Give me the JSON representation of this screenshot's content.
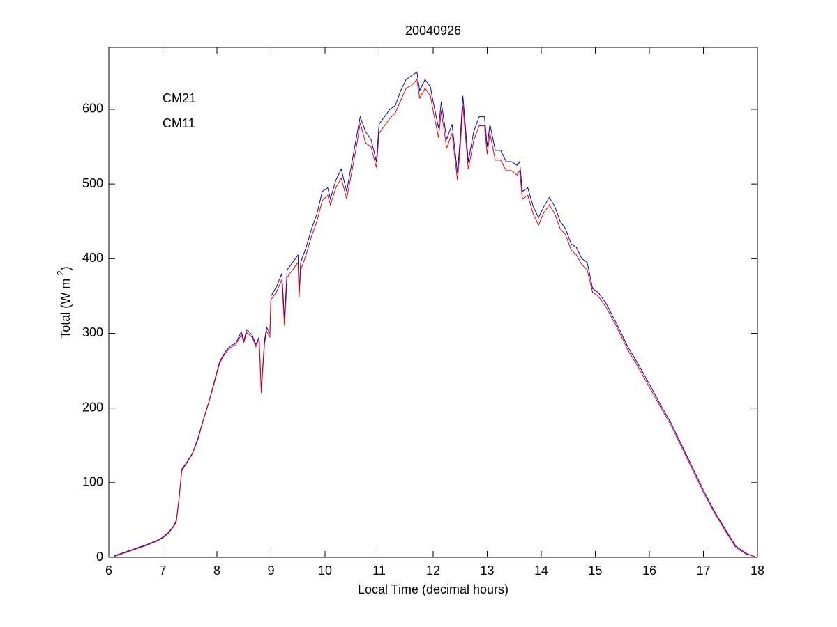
{
  "chart_data": {
    "type": "line",
    "title": "20040926",
    "xlabel": "Local Time (decimal hours)",
    "ylabel": [
      "Total (W m",
      "-2",
      ")"
    ],
    "legend": "upper left",
    "x": [
      6.1,
      6.3,
      6.5,
      6.7,
      6.9,
      7.0,
      7.1,
      7.2,
      7.25,
      7.3,
      7.35,
      7.45,
      7.55,
      7.65,
      7.75,
      7.85,
      7.95,
      8.05,
      8.15,
      8.25,
      8.35,
      8.45,
      8.5,
      8.55,
      8.65,
      8.72,
      8.78,
      8.82,
      8.88,
      8.92,
      8.98,
      9.0,
      9.1,
      9.2,
      9.25,
      9.3,
      9.4,
      9.5,
      9.52,
      9.55,
      9.65,
      9.75,
      9.85,
      9.95,
      10.05,
      10.1,
      10.2,
      10.3,
      10.4,
      10.5,
      10.6,
      10.65,
      10.75,
      10.85,
      10.95,
      11.0,
      11.1,
      11.2,
      11.3,
      11.4,
      11.5,
      11.6,
      11.7,
      11.75,
      11.85,
      11.95,
      12.0,
      12.1,
      12.15,
      12.25,
      12.35,
      12.45,
      12.5,
      12.55,
      12.65,
      12.75,
      12.85,
      12.95,
      13.0,
      13.05,
      13.15,
      13.25,
      13.35,
      13.45,
      13.55,
      13.6,
      13.65,
      13.75,
      13.85,
      13.95,
      14.05,
      14.15,
      14.25,
      14.35,
      14.45,
      14.55,
      14.65,
      14.75,
      14.85,
      14.95,
      15.05,
      15.2,
      15.4,
      15.6,
      15.8,
      16.0,
      16.2,
      16.4,
      16.6,
      16.8,
      17.0,
      17.2,
      17.4,
      17.6,
      17.8,
      17.95
    ],
    "series": [
      {
        "name": "CM21",
        "color": "#0000cc",
        "values": [
          2,
          7,
          12,
          17,
          23,
          27,
          33,
          42,
          50,
          80,
          118,
          128,
          140,
          160,
          185,
          208,
          235,
          262,
          275,
          283,
          287,
          302,
          290,
          305,
          298,
          285,
          295,
          225,
          290,
          308,
          300,
          350,
          362,
          380,
          320,
          385,
          395,
          405,
          355,
          395,
          415,
          440,
          460,
          490,
          495,
          480,
          505,
          520,
          490,
          530,
          570,
          590,
          570,
          560,
          530,
          580,
          590,
          600,
          605,
          625,
          640,
          645,
          650,
          625,
          640,
          630,
          610,
          575,
          610,
          560,
          580,
          515,
          560,
          618,
          530,
          570,
          590,
          590,
          550,
          580,
          545,
          545,
          530,
          530,
          525,
          530,
          490,
          495,
          470,
          455,
          470,
          482,
          470,
          450,
          440,
          420,
          415,
          400,
          395,
          360,
          355,
          340,
          312,
          282,
          258,
          232,
          205,
          180,
          150,
          120,
          90,
          62,
          38,
          15,
          5,
          1
        ]
      },
      {
        "name": "CM11",
        "color": "#ee0000",
        "values": [
          1,
          6,
          11,
          16,
          22,
          26,
          32,
          41,
          48,
          78,
          116,
          127,
          139,
          158,
          184,
          207,
          233,
          260,
          273,
          281,
          285,
          298,
          288,
          301,
          295,
          282,
          292,
          220,
          285,
          303,
          295,
          345,
          355,
          372,
          310,
          375,
          385,
          395,
          348,
          385,
          405,
          430,
          450,
          478,
          485,
          472,
          495,
          508,
          480,
          518,
          558,
          582,
          555,
          550,
          522,
          568,
          578,
          588,
          595,
          612,
          628,
          632,
          640,
          615,
          628,
          618,
          598,
          562,
          598,
          548,
          568,
          505,
          548,
          605,
          520,
          558,
          578,
          578,
          540,
          568,
          532,
          532,
          518,
          518,
          512,
          518,
          480,
          485,
          460,
          445,
          462,
          472,
          460,
          440,
          432,
          412,
          405,
          392,
          385,
          355,
          350,
          335,
          308,
          278,
          254,
          228,
          202,
          177,
          147,
          117,
          87,
          60,
          36,
          13,
          4,
          1
        ]
      }
    ],
    "xlim": [
      6,
      18
    ],
    "xticks": [
      6,
      7,
      8,
      9,
      10,
      11,
      12,
      13,
      14,
      15,
      16,
      17,
      18
    ],
    "ylim": [
      0,
      683
    ],
    "yticks": [
      0,
      100,
      200,
      300,
      400,
      500,
      600
    ]
  }
}
